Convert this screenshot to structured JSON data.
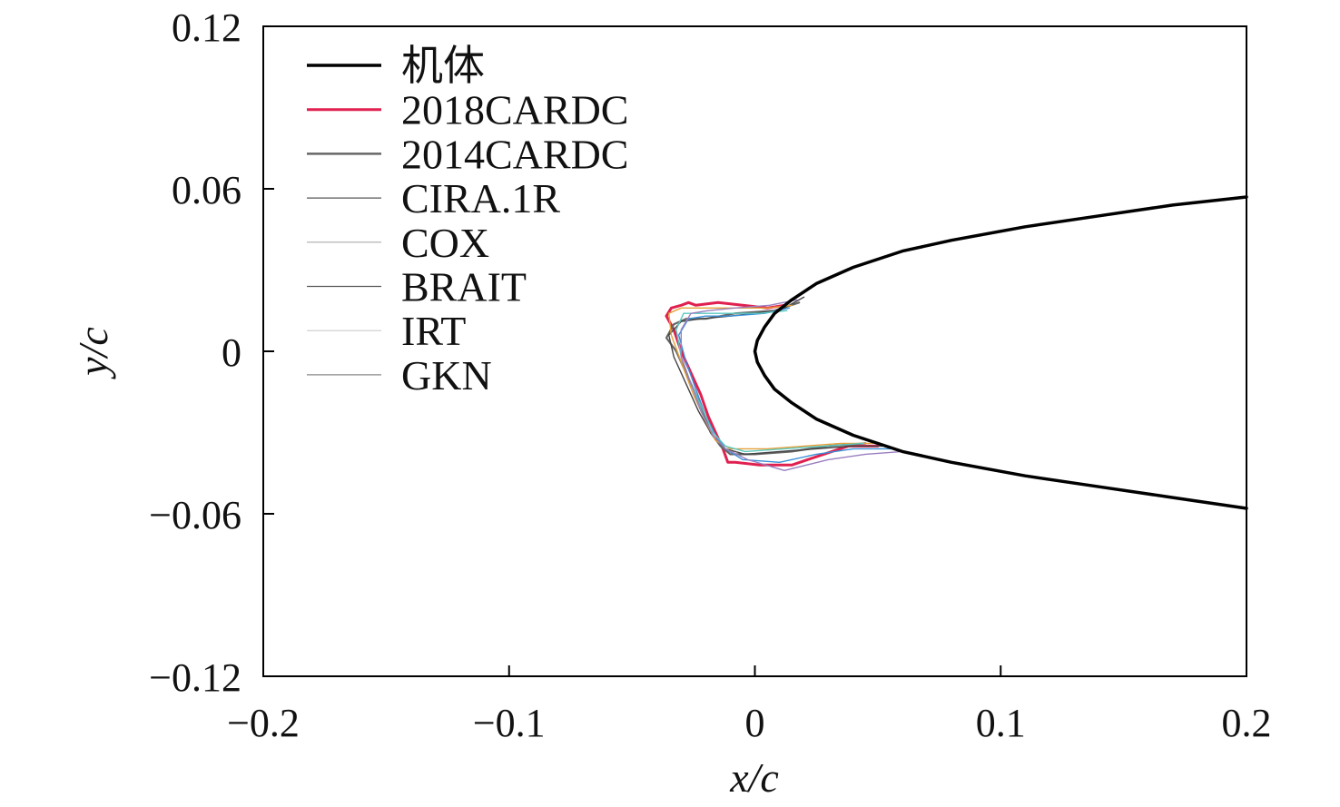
{
  "chart_data": {
    "type": "line",
    "xlabel": "x/c",
    "ylabel": "y/c",
    "xlim": [
      -0.2,
      0.2
    ],
    "ylim": [
      -0.12,
      0.12
    ],
    "xticks": [
      -0.2,
      -0.1,
      0,
      0.1,
      0.2
    ],
    "xtick_labels": [
      "−0.2",
      "−0.1",
      "0",
      "0.1",
      "0.2"
    ],
    "yticks": [
      0.12,
      0.06,
      0,
      -0.06,
      -0.12
    ],
    "ytick_labels": [
      "0.12",
      "0.06",
      "0",
      "−0.06",
      "−0.12"
    ],
    "grid": false,
    "legend_position": "top-left",
    "series": [
      {
        "name": "机体",
        "color": "#000000",
        "x": [
          0.2,
          0.17,
          0.14,
          0.11,
          0.08,
          0.06,
          0.04,
          0.025,
          0.015,
          0.008,
          0.004,
          0.001,
          0.0,
          0.001,
          0.004,
          0.008,
          0.015,
          0.025,
          0.04,
          0.06,
          0.08,
          0.11,
          0.14,
          0.17,
          0.2
        ],
        "y": [
          0.057,
          0.054,
          0.05,
          0.046,
          0.041,
          0.037,
          0.031,
          0.025,
          0.019,
          0.014,
          0.009,
          0.004,
          0.0,
          -0.004,
          -0.009,
          -0.014,
          -0.019,
          -0.025,
          -0.031,
          -0.037,
          -0.041,
          -0.046,
          -0.05,
          -0.054,
          -0.058
        ]
      },
      {
        "name": "2018CARDC",
        "color": "#e0204f",
        "x": [
          0.012,
          0.005,
          -0.005,
          -0.015,
          -0.024,
          -0.027,
          -0.03,
          -0.034,
          -0.036,
          -0.033,
          -0.03,
          -0.026,
          -0.022,
          -0.019,
          -0.016,
          -0.013,
          -0.011,
          -0.008,
          0.002,
          0.015,
          0.028,
          0.038,
          0.045,
          0.05
        ],
        "y": [
          0.017,
          0.016,
          0.017,
          0.018,
          0.017,
          0.018,
          0.017,
          0.016,
          0.013,
          0.008,
          0.0,
          -0.008,
          -0.016,
          -0.024,
          -0.03,
          -0.036,
          -0.041,
          -0.041,
          -0.042,
          -0.042,
          -0.038,
          -0.035,
          -0.035,
          -0.035
        ]
      },
      {
        "name": "2014CARDC",
        "color": "#666666",
        "x": [
          0.018,
          0.008,
          -0.008,
          -0.02,
          -0.028,
          -0.033,
          -0.036,
          -0.032,
          -0.027,
          -0.022,
          -0.018,
          -0.014,
          -0.01,
          0.0,
          0.015,
          0.03,
          0.045
        ],
        "y": [
          0.018,
          0.015,
          0.014,
          0.012,
          0.012,
          0.01,
          0.005,
          0.0,
          -0.01,
          -0.02,
          -0.03,
          -0.035,
          -0.038,
          -0.038,
          -0.037,
          -0.035,
          -0.034
        ]
      },
      {
        "name": "CIRA.1R",
        "color": "#444444",
        "x": [
          0.02,
          0.01,
          -0.01,
          -0.022,
          -0.03,
          -0.035,
          -0.033,
          -0.028,
          -0.023,
          -0.018,
          -0.012,
          -0.004,
          0.01,
          0.025,
          0.04,
          0.052
        ],
        "y": [
          0.02,
          0.015,
          0.013,
          0.012,
          0.011,
          0.006,
          -0.002,
          -0.012,
          -0.022,
          -0.03,
          -0.036,
          -0.038,
          -0.037,
          -0.036,
          -0.035,
          -0.035
        ]
      },
      {
        "name": "COX",
        "color": "#e5a03a",
        "x": [
          0.015,
          0.005,
          -0.008,
          -0.02,
          -0.03,
          -0.035,
          -0.034,
          -0.03,
          -0.025,
          -0.02,
          -0.016,
          -0.01,
          0.005,
          0.02,
          0.035,
          0.048
        ],
        "y": [
          0.017,
          0.016,
          0.016,
          0.016,
          0.016,
          0.014,
          0.006,
          -0.004,
          -0.016,
          -0.026,
          -0.033,
          -0.036,
          -0.036,
          -0.035,
          -0.034,
          -0.034
        ]
      },
      {
        "name": "BRAIT",
        "color": "#3a8fd8",
        "x": [
          0.014,
          0.004,
          -0.01,
          -0.02,
          -0.027,
          -0.031,
          -0.028,
          -0.024,
          -0.02,
          -0.016,
          -0.012,
          -0.005,
          0.01,
          0.025,
          0.04,
          0.055
        ],
        "y": [
          0.016,
          0.014,
          0.013,
          0.013,
          0.012,
          0.006,
          -0.004,
          -0.014,
          -0.024,
          -0.031,
          -0.036,
          -0.04,
          -0.041,
          -0.038,
          -0.036,
          -0.036
        ]
      },
      {
        "name": "IRT",
        "color": "#5bc8c0",
        "x": [
          0.013,
          0.002,
          -0.012,
          -0.022,
          -0.029,
          -0.032,
          -0.03,
          -0.026,
          -0.021,
          -0.017,
          -0.012,
          -0.004,
          0.012,
          0.028,
          0.044
        ],
        "y": [
          0.015,
          0.014,
          0.014,
          0.014,
          0.014,
          0.008,
          -0.002,
          -0.012,
          -0.022,
          -0.03,
          -0.035,
          -0.037,
          -0.036,
          -0.035,
          -0.034
        ]
      },
      {
        "name": "GKN",
        "color": "#9a7fc0",
        "x": [
          0.017,
          0.006,
          -0.008,
          -0.019,
          -0.026,
          -0.03,
          -0.03,
          -0.026,
          -0.022,
          -0.017,
          -0.012,
          -0.003,
          0.012,
          0.03,
          0.045,
          0.06
        ],
        "y": [
          0.019,
          0.017,
          0.016,
          0.015,
          0.014,
          0.008,
          -0.002,
          -0.012,
          -0.022,
          -0.031,
          -0.036,
          -0.04,
          -0.044,
          -0.04,
          -0.038,
          -0.037
        ]
      }
    ]
  }
}
